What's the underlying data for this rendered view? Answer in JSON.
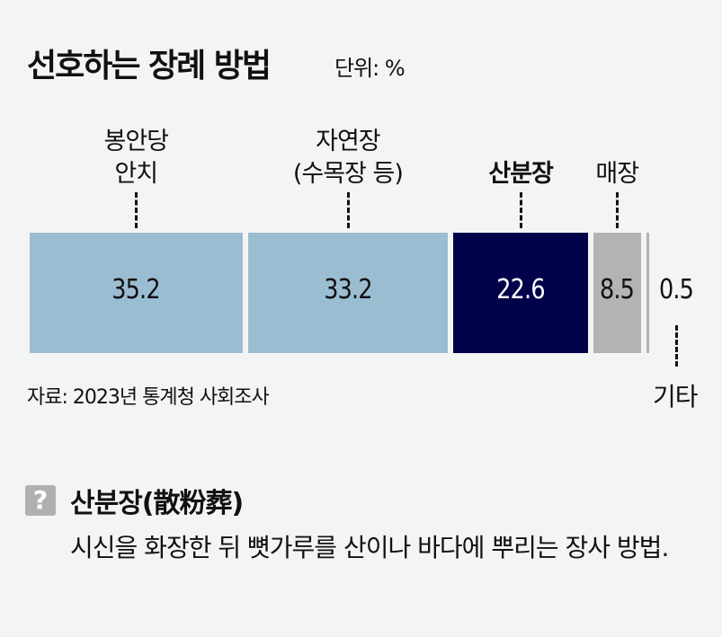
{
  "chart_data": {
    "type": "bar",
    "orientation": "horizontal-stacked",
    "title": "선호하는 장례 방법",
    "unit": "단위: %",
    "categories": [
      "봉안당 안치",
      "자연장 (수목장 등)",
      "산분장",
      "매장",
      "기타"
    ],
    "category_lines": [
      [
        "봉안당",
        "안치"
      ],
      [
        "자연장",
        "(수목장 등)"
      ],
      [
        "산분장"
      ],
      [
        "매장"
      ],
      [
        "기타"
      ]
    ],
    "values": [
      35.2,
      33.2,
      22.6,
      8.5,
      0.5
    ],
    "value_labels": [
      "35.2",
      "33.2",
      "22.6",
      "8.5",
      "0.5"
    ],
    "colors": [
      "#9bbdd2",
      "#9bbdd2",
      "#02024a",
      "#b3b3b3",
      "#b3b3b3"
    ],
    "label_colors": [
      "#111111",
      "#111111",
      "#ffffff",
      "#111111",
      "#111111"
    ],
    "highlight": "산분장",
    "source": "자료: 2023년 통계청 사회조사"
  },
  "note": {
    "icon": "question-icon",
    "icon_text": "?",
    "term": "산분장(散粉葬)",
    "description": "시신을 화장한 뒤 뼛가루를 산이나 바다에 뿌리는 장사 방법."
  }
}
